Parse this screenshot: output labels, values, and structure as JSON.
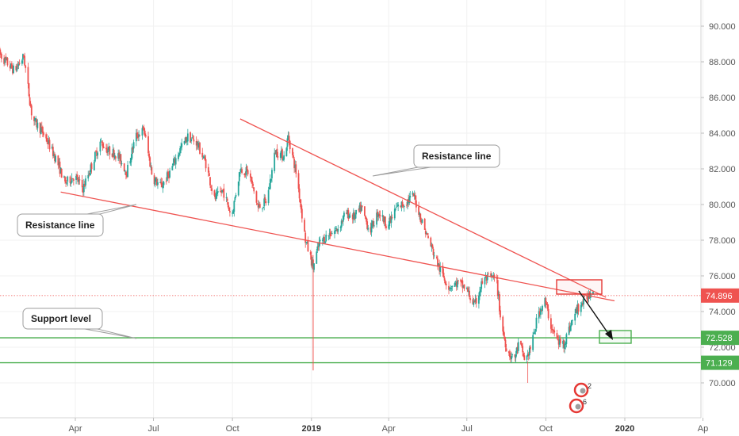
{
  "chart_data": {
    "type": "candlestick",
    "x_ticks": [
      "Apr",
      "Jul",
      "Oct",
      "2019",
      "Apr",
      "Jul",
      "Oct",
      "2020",
      "Ap"
    ],
    "y_ticks": [
      "70.000",
      "72.000",
      "74.000",
      "76.000",
      "78.000",
      "80.000",
      "82.000",
      "84.000",
      "86.000",
      "88.000",
      "90.000"
    ],
    "ylim": [
      68,
      91
    ],
    "price_markers": [
      {
        "label": "74.896",
        "value": 74.896,
        "color": "#ef5350"
      },
      {
        "label": "72.528",
        "value": 72.528,
        "color": "#4caf50"
      },
      {
        "label": "71.129",
        "value": 71.129,
        "color": "#4caf50"
      }
    ],
    "horizontal_levels": [
      {
        "value": 72.528,
        "color": "#4caf50"
      },
      {
        "value": 71.129,
        "color": "#4caf50"
      }
    ],
    "trend_lines": [
      {
        "from": [
          "2018-03-15",
          80.7
        ],
        "to": [
          "2019-12-20",
          74.6
        ],
        "color": "#ef5350"
      },
      {
        "from": [
          "2018-10-10",
          84.8
        ],
        "to": [
          "2019-12-10",
          74.8
        ],
        "color": "#ef5350"
      }
    ],
    "annotations": [
      {
        "text": "Resistance line"
      },
      {
        "text": "Resistance line"
      },
      {
        "text": "Support level"
      }
    ],
    "candle_colors": {
      "up": "#26a69a",
      "down": "#ef5350"
    },
    "price_path": [
      [
        "2018-01-02",
        88.5
      ],
      [
        "2018-01-10",
        88.0
      ],
      [
        "2018-01-20",
        87.5
      ],
      [
        "2018-01-31",
        88.3
      ],
      [
        "2018-02-10",
        84.8
      ],
      [
        "2018-02-20",
        84.2
      ],
      [
        "2018-02-28",
        83.5
      ],
      [
        "2018-03-10",
        82.5
      ],
      [
        "2018-03-20",
        81.2
      ],
      [
        "2018-03-31",
        81.6
      ],
      [
        "2018-04-10",
        80.9
      ],
      [
        "2018-04-20",
        82.2
      ],
      [
        "2018-04-30",
        83.5
      ],
      [
        "2018-05-10",
        83.0
      ],
      [
        "2018-05-20",
        82.8
      ],
      [
        "2018-05-31",
        81.8
      ],
      [
        "2018-06-10",
        83.8
      ],
      [
        "2018-06-20",
        84.2
      ],
      [
        "2018-06-30",
        81.5
      ],
      [
        "2018-07-10",
        81.0
      ],
      [
        "2018-07-20",
        81.8
      ],
      [
        "2018-07-31",
        83.0
      ],
      [
        "2018-08-10",
        83.8
      ],
      [
        "2018-08-20",
        83.5
      ],
      [
        "2018-08-31",
        82.3
      ],
      [
        "2018-09-10",
        80.3
      ],
      [
        "2018-09-20",
        80.8
      ],
      [
        "2018-09-30",
        79.3
      ],
      [
        "2018-10-10",
        82.0
      ],
      [
        "2018-10-20",
        81.8
      ],
      [
        "2018-10-31",
        79.8
      ],
      [
        "2018-11-10",
        80.2
      ],
      [
        "2018-11-20",
        83.0
      ],
      [
        "2018-11-30",
        82.7
      ],
      [
        "2018-12-05",
        83.8
      ],
      [
        "2018-12-15",
        81.6
      ],
      [
        "2018-12-25",
        78.0
      ],
      [
        "2019-01-03",
        76.5
      ],
      [
        "2019-01-10",
        77.8
      ],
      [
        "2019-01-20",
        78.3
      ],
      [
        "2019-01-31",
        78.6
      ],
      [
        "2019-02-10",
        79.5
      ],
      [
        "2019-02-20",
        79.3
      ],
      [
        "2019-02-28",
        79.8
      ],
      [
        "2019-03-10",
        78.5
      ],
      [
        "2019-03-20",
        79.6
      ],
      [
        "2019-03-31",
        78.8
      ],
      [
        "2019-04-10",
        79.8
      ],
      [
        "2019-04-20",
        80.1
      ],
      [
        "2019-04-30",
        80.5
      ],
      [
        "2019-05-10",
        79.0
      ],
      [
        "2019-05-20",
        77.7
      ],
      [
        "2019-05-31",
        76.3
      ],
      [
        "2019-06-10",
        75.4
      ],
      [
        "2019-06-20",
        75.6
      ],
      [
        "2019-06-30",
        75.3
      ],
      [
        "2019-07-10",
        74.3
      ],
      [
        "2019-07-20",
        75.8
      ],
      [
        "2019-07-31",
        75.9
      ],
      [
        "2019-08-05",
        75.6
      ],
      [
        "2019-08-10",
        73.3
      ],
      [
        "2019-08-17",
        71.8
      ],
      [
        "2019-08-25",
        71.3
      ],
      [
        "2019-08-31",
        72.3
      ],
      [
        "2019-09-07",
        71.2
      ],
      [
        "2019-09-15",
        72.2
      ],
      [
        "2019-09-22",
        73.9
      ],
      [
        "2019-09-30",
        74.6
      ],
      [
        "2019-10-07",
        73.2
      ],
      [
        "2019-10-15",
        72.3
      ],
      [
        "2019-10-22",
        72.2
      ],
      [
        "2019-10-31",
        73.4
      ],
      [
        "2019-11-07",
        74.2
      ],
      [
        "2019-11-15",
        74.6
      ],
      [
        "2019-11-25",
        75.3
      ]
    ]
  }
}
